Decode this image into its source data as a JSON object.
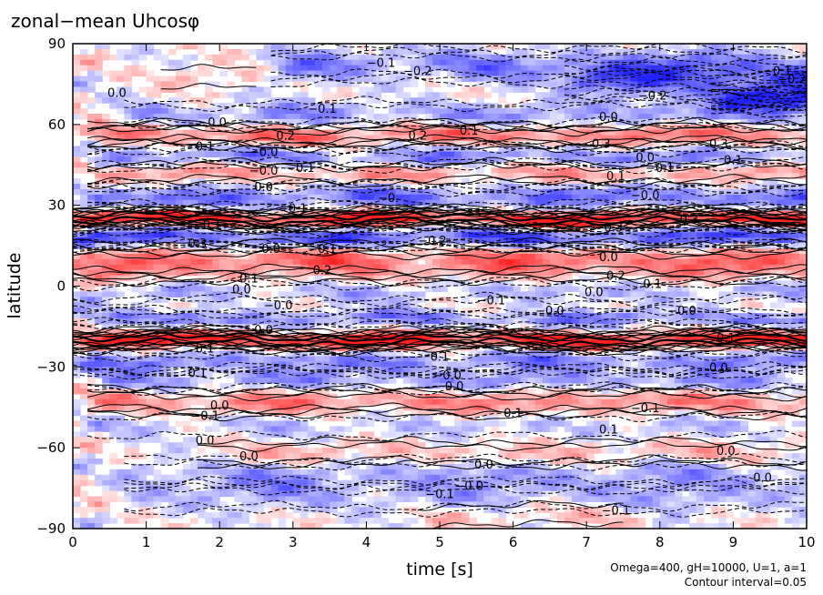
{
  "chart_data": {
    "type": "heatmap",
    "title": "zonal−mean Uhcosφ",
    "xlabel": "time [s]",
    "ylabel": "latitude",
    "xlim": [
      0,
      10
    ],
    "ylim": [
      -90,
      90
    ],
    "x_ticks": [
      0,
      1,
      2,
      3,
      4,
      5,
      6,
      7,
      8,
      9,
      10
    ],
    "y_ticks": [
      90,
      60,
      30,
      0,
      -30,
      -60,
      -90
    ],
    "y_tick_labels": [
      "90",
      "60",
      "30",
      "0",
      "−30",
      "−60",
      "−90"
    ],
    "annotations": [
      "Omega=400, gH=10000, U=1, a=1",
      "Contour interval=0.05"
    ],
    "contour_interval": 0.05,
    "colors": {
      "positive": "#ff2020",
      "negative": "#2020ff",
      "zero": "#ffffff"
    },
    "bands": [
      {
        "lat": 82,
        "width": 4,
        "amp": -0.15,
        "t_start": 3,
        "t_end": 10
      },
      {
        "lat": 76,
        "width": 4,
        "amp": -0.2,
        "t_start": 7,
        "t_end": 10
      },
      {
        "lat": 70,
        "width": 3,
        "amp": -0.25,
        "t_start": 9,
        "t_end": 10
      },
      {
        "lat": 78,
        "width": 3,
        "amp": 0.05,
        "t_start": 1.5,
        "t_end": 2.5
      },
      {
        "lat": 64,
        "width": 3,
        "amp": -0.12,
        "t_start": 1,
        "t_end": 10
      },
      {
        "lat": 56,
        "width": 2.5,
        "amp": 0.18,
        "t_start": 0.5,
        "t_end": 10
      },
      {
        "lat": 48,
        "width": 2.5,
        "amp": -0.15,
        "t_start": 0.5,
        "t_end": 10
      },
      {
        "lat": 42,
        "width": 2.5,
        "amp": 0.12,
        "t_start": 0.5,
        "t_end": 10
      },
      {
        "lat": 33,
        "width": 3,
        "amp": -0.18,
        "t_start": 0.5,
        "t_end": 10
      },
      {
        "lat": 25,
        "width": 2,
        "amp": 0.35,
        "t_start": 0.2,
        "t_end": 10
      },
      {
        "lat": 18,
        "width": 2.5,
        "amp": -0.25,
        "t_start": 0.2,
        "t_end": 10
      },
      {
        "lat": 9,
        "width": 4,
        "amp": 0.2,
        "t_start": 0.3,
        "t_end": 10
      },
      {
        "lat": -2,
        "width": 2.5,
        "amp": -0.08,
        "t_start": 0.2,
        "t_end": 10
      },
      {
        "lat": -12,
        "width": 2,
        "amp": -0.15,
        "t_start": 0.2,
        "t_end": 10
      },
      {
        "lat": -20,
        "width": 2,
        "amp": 0.35,
        "t_start": 0.1,
        "t_end": 10
      },
      {
        "lat": -28,
        "width": 2.5,
        "amp": -0.15,
        "t_start": 0.3,
        "t_end": 10
      },
      {
        "lat": -35,
        "width": 2.5,
        "amp": -0.12,
        "t_start": 0.5,
        "t_end": 10
      },
      {
        "lat": -43,
        "width": 3,
        "amp": 0.15,
        "t_start": 0.5,
        "t_end": 10
      },
      {
        "lat": -52,
        "width": 3,
        "amp": -0.06,
        "t_start": 0.5,
        "t_end": 10
      },
      {
        "lat": -62,
        "width": 3,
        "amp": 0.08,
        "t_start": 2,
        "t_end": 10
      },
      {
        "lat": -70,
        "width": 4,
        "amp": -0.1,
        "t_start": 1,
        "t_end": 10
      },
      {
        "lat": -78,
        "width": 4,
        "amp": -0.08,
        "t_start": 1,
        "t_end": 10
      },
      {
        "lat": -85,
        "width": 3,
        "amp": 0.06,
        "t_start": 5,
        "t_end": 7.5
      }
    ],
    "contour_labels": [
      {
        "t": 4.2,
        "lat": 83,
        "text": "−0.1"
      },
      {
        "t": 4.7,
        "lat": 80,
        "text": "−0.2"
      },
      {
        "t": 9.6,
        "lat": 80,
        "text": "−0.1"
      },
      {
        "t": 9.8,
        "lat": 77,
        "text": "−0.2"
      },
      {
        "t": 7.9,
        "lat": 71,
        "text": "−0.2"
      },
      {
        "t": 0.6,
        "lat": 72,
        "text": "0.0"
      },
      {
        "t": 3.4,
        "lat": 66,
        "text": "−0.1"
      },
      {
        "t": 1.9,
        "lat": 61,
        "text": "−0.0"
      },
      {
        "t": 7.3,
        "lat": 63,
        "text": "0.0"
      },
      {
        "t": 5.4,
        "lat": 58,
        "text": "0.1"
      },
      {
        "t": 4.7,
        "lat": 56,
        "text": "0.2"
      },
      {
        "t": 2.9,
        "lat": 56,
        "text": "0.2"
      },
      {
        "t": 7.2,
        "lat": 53,
        "text": "0.3"
      },
      {
        "t": 8.8,
        "lat": 53,
        "text": "0.3"
      },
      {
        "t": 1.8,
        "lat": 52,
        "text": "0.1"
      },
      {
        "t": 2.6,
        "lat": 50,
        "text": "−0.0"
      },
      {
        "t": 7.8,
        "lat": 48,
        "text": "0.0"
      },
      {
        "t": 2.6,
        "lat": 43,
        "text": "−0.0"
      },
      {
        "t": 3.1,
        "lat": 44,
        "text": "−0.1"
      },
      {
        "t": 8.0,
        "lat": 44,
        "text": "−0.1"
      },
      {
        "t": 9.0,
        "lat": 47,
        "text": "0.1"
      },
      {
        "t": 7.4,
        "lat": 41,
        "text": "0.1"
      },
      {
        "t": 2.6,
        "lat": 37,
        "text": "0.0"
      },
      {
        "t": 7.8,
        "lat": 34,
        "text": "−0.0"
      },
      {
        "t": 4.3,
        "lat": 33,
        "text": "−0."
      },
      {
        "t": 3.0,
        "lat": 29,
        "text": "−0.1"
      },
      {
        "t": 1.9,
        "lat": 23,
        "text": "0.1"
      },
      {
        "t": 7.3,
        "lat": 22,
        "text": "−0.3"
      },
      {
        "t": 8.4,
        "lat": 25,
        "text": "0.3"
      },
      {
        "t": 4.9,
        "lat": 17,
        "text": "−0.2"
      },
      {
        "t": 1.7,
        "lat": 16,
        "text": "0.3"
      },
      {
        "t": 2.7,
        "lat": 14,
        "text": "0.0"
      },
      {
        "t": 3.4,
        "lat": 14,
        "text": "−0.1"
      },
      {
        "t": 7.3,
        "lat": 11,
        "text": "0.0"
      },
      {
        "t": 3.4,
        "lat": 6,
        "text": "0.2"
      },
      {
        "t": 7.4,
        "lat": 4,
        "text": "0.2"
      },
      {
        "t": 7.9,
        "lat": 1,
        "text": "0.1"
      },
      {
        "t": 2.4,
        "lat": 3,
        "text": "0.1"
      },
      {
        "t": 2.3,
        "lat": -1,
        "text": "0.0"
      },
      {
        "t": 2.8,
        "lat": -7,
        "text": "−0.0"
      },
      {
        "t": 5.7,
        "lat": -5,
        "text": "−0.1"
      },
      {
        "t": 6.5,
        "lat": -9,
        "text": "−0.0"
      },
      {
        "t": 7.1,
        "lat": -2,
        "text": "0.0"
      },
      {
        "t": 8.3,
        "lat": -9,
        "text": "−0.0"
      },
      {
        "t": 2.6,
        "lat": -16,
        "text": "0.0"
      },
      {
        "t": 8.9,
        "lat": -19,
        "text": "0.1"
      },
      {
        "t": 1.8,
        "lat": -23,
        "text": "0.1"
      },
      {
        "t": 5.0,
        "lat": -26,
        "text": "0.1"
      },
      {
        "t": 8.8,
        "lat": -30,
        "text": "0.0"
      },
      {
        "t": 1.7,
        "lat": -32,
        "text": "0.1"
      },
      {
        "t": 5.1,
        "lat": -33,
        "text": "−0.0"
      },
      {
        "t": 5.2,
        "lat": -37,
        "text": "0.0"
      },
      {
        "t": 7.8,
        "lat": -45,
        "text": "−0.1"
      },
      {
        "t": 2.0,
        "lat": -44,
        "text": "0.0"
      },
      {
        "t": 1.8,
        "lat": -48,
        "text": "−0.1"
      },
      {
        "t": 6.0,
        "lat": -47,
        "text": "0.1"
      },
      {
        "t": 7.3,
        "lat": -53,
        "text": "0.1"
      },
      {
        "t": 1.8,
        "lat": -57,
        "text": "0.0"
      },
      {
        "t": 2.4,
        "lat": -63,
        "text": "0.0"
      },
      {
        "t": 5.6,
        "lat": -66,
        "text": "0.0"
      },
      {
        "t": 8.9,
        "lat": -61,
        "text": "0.0"
      },
      {
        "t": 9.4,
        "lat": -71,
        "text": "0.0"
      },
      {
        "t": 5.4,
        "lat": -74,
        "text": "−0.0"
      },
      {
        "t": 5.0,
        "lat": -77,
        "text": "−0.1"
      },
      {
        "t": 7.4,
        "lat": -83,
        "text": "−0.1"
      }
    ]
  }
}
